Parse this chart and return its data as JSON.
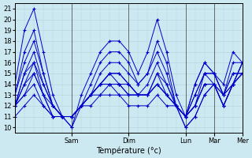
{
  "xlabel": "Température (°c)",
  "bg_color": "#cce8f0",
  "grid_color": "#b8d8e0",
  "line_color": "#0000cc",
  "ylim": [
    9.5,
    21.5
  ],
  "yticks": [
    10,
    11,
    12,
    13,
    14,
    15,
    16,
    17,
    18,
    19,
    20,
    21
  ],
  "xlim": [
    0,
    192
  ],
  "day_ticks": [
    48,
    96,
    144,
    168,
    192
  ],
  "day_labels": [
    "Sam",
    "Dim",
    "Lun",
    "Mar",
    "Mer"
  ],
  "series": [
    {
      "x": [
        0,
        8,
        16,
        24,
        32,
        40,
        48,
        56,
        64,
        72,
        80,
        88,
        96,
        104,
        112,
        120,
        128,
        136,
        144,
        152,
        160,
        168,
        176,
        184,
        192
      ],
      "y": [
        14,
        19,
        21,
        17,
        13,
        11,
        10,
        13,
        15,
        17,
        18,
        18,
        17,
        15,
        17,
        20,
        17,
        13,
        11,
        14,
        16,
        15,
        14,
        17,
        16
      ]
    },
    {
      "x": [
        0,
        8,
        16,
        24,
        32,
        40,
        48,
        56,
        64,
        72,
        80,
        88,
        96,
        104,
        112,
        120,
        128,
        136,
        144,
        152,
        160,
        168,
        176,
        184,
        192
      ],
      "y": [
        13,
        17,
        19,
        15,
        12,
        11,
        10,
        12,
        14,
        16,
        17,
        17,
        16,
        14,
        15,
        18,
        16,
        12,
        11,
        14,
        16,
        15,
        13,
        16,
        16
      ]
    },
    {
      "x": [
        0,
        8,
        16,
        24,
        32,
        40,
        48,
        56,
        64,
        72,
        80,
        88,
        96,
        104,
        112,
        120,
        128,
        136,
        144,
        152,
        160,
        168,
        176,
        184,
        192
      ],
      "y": [
        13,
        16,
        18,
        15,
        12,
        11,
        11,
        12,
        13,
        15,
        16,
        16,
        15,
        14,
        15,
        17,
        15,
        12,
        11,
        13,
        15,
        15,
        13,
        15,
        15
      ]
    },
    {
      "x": [
        0,
        8,
        16,
        24,
        32,
        40,
        48,
        56,
        64,
        72,
        80,
        88,
        96,
        104,
        112,
        120,
        128,
        136,
        144,
        152,
        160,
        168,
        176,
        184,
        192
      ],
      "y": [
        12,
        15,
        17,
        14,
        12,
        11,
        11,
        12,
        13,
        14,
        15,
        15,
        14,
        13,
        14,
        16,
        14,
        12,
        11,
        13,
        15,
        15,
        13,
        15,
        15
      ]
    },
    {
      "x": [
        0,
        8,
        16,
        24,
        32,
        40,
        48,
        56,
        64,
        72,
        80,
        88,
        96,
        104,
        112,
        120,
        128,
        136,
        144,
        152,
        160,
        168,
        176,
        184,
        192
      ],
      "y": [
        12,
        15,
        16,
        14,
        12,
        11,
        11,
        12,
        13,
        14,
        15,
        15,
        14,
        13,
        13,
        15,
        14,
        12,
        11,
        12,
        15,
        14,
        13,
        14,
        15
      ]
    },
    {
      "x": [
        0,
        8,
        16,
        24,
        32,
        40,
        48,
        56,
        64,
        72,
        80,
        88,
        96,
        104,
        112,
        120,
        128,
        136,
        144,
        152,
        160,
        168,
        176,
        184,
        192
      ],
      "y": [
        12,
        14,
        16,
        13,
        12,
        11,
        11,
        12,
        13,
        14,
        15,
        14,
        14,
        13,
        13,
        15,
        13,
        12,
        11,
        12,
        14,
        14,
        13,
        14,
        15
      ]
    },
    {
      "x": [
        0,
        8,
        16,
        24,
        32,
        40,
        48,
        56,
        64,
        72,
        80,
        88,
        96,
        104,
        112,
        120,
        128,
        136,
        144,
        152,
        160,
        168,
        176,
        184,
        192
      ],
      "y": [
        12,
        14,
        15,
        13,
        11,
        11,
        11,
        12,
        13,
        14,
        14,
        14,
        13,
        13,
        13,
        14,
        13,
        12,
        11,
        12,
        14,
        14,
        12,
        14,
        15
      ]
    },
    {
      "x": [
        0,
        8,
        16,
        24,
        32,
        40,
        48,
        56,
        64,
        72,
        80,
        88,
        96,
        104,
        112,
        120,
        128,
        136,
        144,
        152,
        160,
        168,
        176,
        184,
        192
      ],
      "y": [
        12,
        13,
        15,
        13,
        11,
        11,
        11,
        12,
        13,
        14,
        14,
        14,
        13,
        13,
        13,
        14,
        13,
        12,
        11,
        12,
        14,
        14,
        12,
        14,
        16
      ]
    },
    {
      "x": [
        0,
        8,
        16,
        24,
        32,
        40,
        48,
        56,
        64,
        72,
        80,
        88,
        96,
        104,
        112,
        120,
        128,
        136,
        144,
        152,
        160,
        168,
        176,
        184,
        192
      ],
      "y": [
        12,
        13,
        14,
        12,
        11,
        11,
        11,
        12,
        13,
        13,
        14,
        13,
        13,
        13,
        13,
        14,
        13,
        12,
        10,
        11,
        13,
        14,
        12,
        14,
        16
      ]
    },
    {
      "x": [
        0,
        8,
        16,
        24,
        32,
        40,
        48,
        56,
        64,
        72,
        80,
        88,
        96,
        104,
        112,
        120,
        128,
        136,
        144,
        152,
        160,
        168,
        176,
        184,
        192
      ],
      "y": [
        11,
        12,
        13,
        12,
        11,
        11,
        11,
        12,
        12,
        13,
        13,
        13,
        12,
        12,
        12,
        13,
        12,
        12,
        10,
        11,
        13,
        14,
        12,
        14,
        16
      ]
    }
  ]
}
